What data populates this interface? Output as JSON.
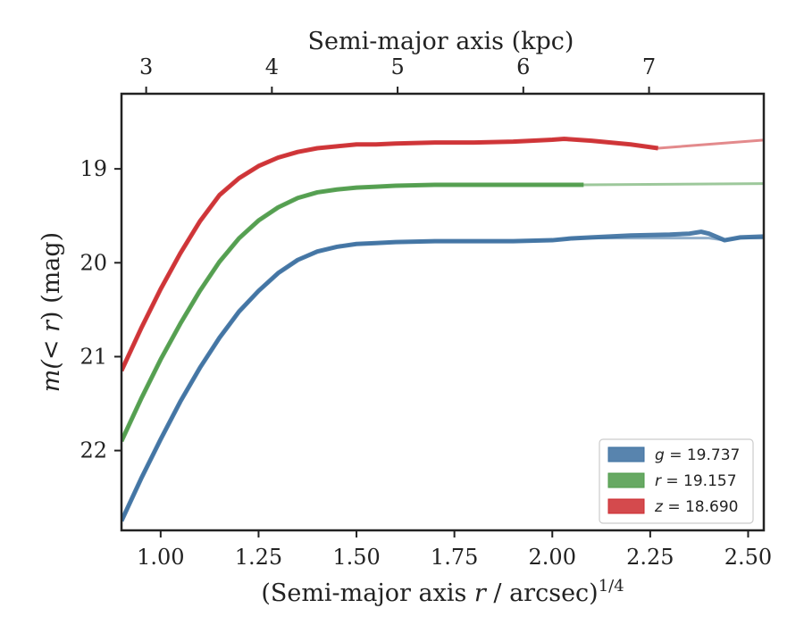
{
  "chart_data": {
    "type": "line",
    "xlabel_prefix": "(Semi-major axis ",
    "xlabel_var": "r",
    "xlabel_suffix": " / arcsec)",
    "xlabel_power": "1/4",
    "ylabel_prefix": "m(",
    "ylabel_var": "< r",
    "ylabel_suffix": ") (mag)",
    "top_xlabel": "Semi-major axis (kpc)",
    "xlim": [
      0.9,
      2.54
    ],
    "ylim": [
      22.85,
      18.2
    ],
    "x_ticks": [
      1.0,
      1.25,
      1.5,
      1.75,
      2.0,
      2.25,
      2.5
    ],
    "x_tick_labels": [
      "1.00",
      "1.25",
      "1.50",
      "1.75",
      "2.00",
      "2.25",
      "2.50"
    ],
    "y_ticks": [
      19,
      20,
      21,
      22
    ],
    "y_tick_labels": [
      "19",
      "20",
      "21",
      "22"
    ],
    "top_ticks_kpc": [
      3,
      4,
      5,
      6,
      7
    ],
    "top_tick_labels": [
      "3",
      "4",
      "5",
      "6",
      "7"
    ],
    "top_tick_positions_x": [
      0.963,
      1.284,
      1.605,
      1.926,
      2.247
    ],
    "legend_position": "lower-right",
    "series": [
      {
        "name": "g",
        "band": "g",
        "total_mag": "19.737",
        "color": "#3b6fa0",
        "asymptote": 19.737,
        "x": [
          0.9,
          0.95,
          1.0,
          1.05,
          1.1,
          1.15,
          1.2,
          1.25,
          1.3,
          1.35,
          1.4,
          1.45,
          1.5,
          1.55,
          1.6,
          1.7,
          1.8,
          1.9,
          2.0,
          2.05,
          2.1,
          2.2,
          2.3,
          2.35,
          2.38,
          2.4,
          2.44,
          2.48,
          2.54
        ],
        "values": [
          22.75,
          22.3,
          21.88,
          21.48,
          21.12,
          20.8,
          20.52,
          20.3,
          20.11,
          19.97,
          19.88,
          19.83,
          19.8,
          19.79,
          19.78,
          19.77,
          19.77,
          19.77,
          19.76,
          19.74,
          19.73,
          19.71,
          19.7,
          19.69,
          19.67,
          19.69,
          19.76,
          19.73,
          19.72
        ]
      },
      {
        "name": "r",
        "band": "r",
        "total_mag": "19.157",
        "color": "#4c9a48",
        "asymptote": 19.157,
        "x": [
          0.9,
          0.95,
          1.0,
          1.05,
          1.1,
          1.15,
          1.2,
          1.25,
          1.3,
          1.35,
          1.4,
          1.45,
          1.5,
          1.55,
          1.6,
          1.7,
          1.8,
          1.9,
          2.0,
          2.08
        ],
        "values": [
          21.9,
          21.45,
          21.03,
          20.65,
          20.3,
          19.99,
          19.74,
          19.55,
          19.41,
          19.31,
          19.25,
          19.22,
          19.2,
          19.19,
          19.18,
          19.17,
          19.17,
          19.17,
          19.17,
          19.17
        ]
      },
      {
        "name": "z",
        "band": "z",
        "total_mag": "18.690",
        "color": "#cc2a2e",
        "asymptote": 18.69,
        "x": [
          0.9,
          0.95,
          1.0,
          1.05,
          1.1,
          1.15,
          1.2,
          1.25,
          1.3,
          1.35,
          1.4,
          1.45,
          1.5,
          1.55,
          1.6,
          1.7,
          1.8,
          1.9,
          2.0,
          2.03,
          2.1,
          2.2,
          2.27
        ],
        "values": [
          21.15,
          20.7,
          20.28,
          19.9,
          19.56,
          19.28,
          19.1,
          18.97,
          18.88,
          18.82,
          18.78,
          18.76,
          18.74,
          18.74,
          18.73,
          18.72,
          18.72,
          18.71,
          18.69,
          18.68,
          18.7,
          18.74,
          18.78
        ]
      }
    ]
  }
}
